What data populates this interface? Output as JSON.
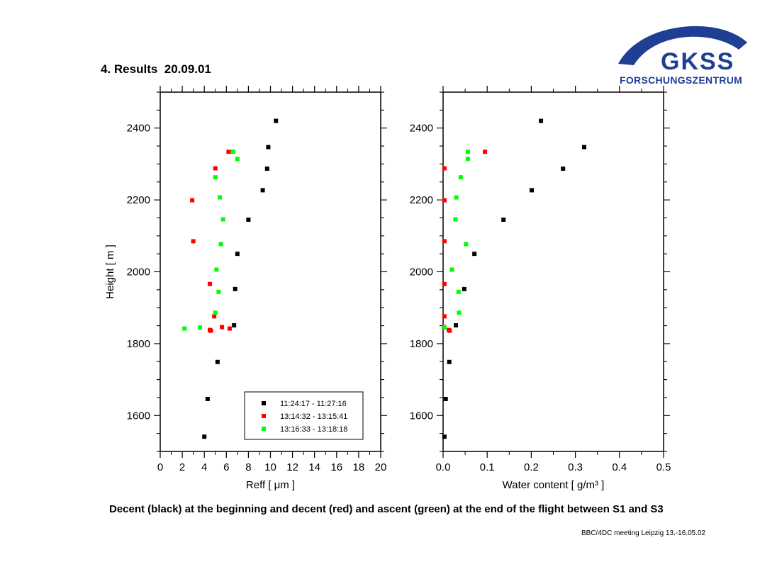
{
  "slide": {
    "title": "4. Results  20.09.01",
    "caption": "Decent (black) at the beginning and decent (red) and ascent (green) at the end of the flight between S1 and S3",
    "footer": "BBC/4DC meeting Leipzig 13.-16.05.02"
  },
  "logo": {
    "name": "GKSS",
    "subtitle": "FORSCHUNGSZENTRUM",
    "color": "#1f3f95"
  },
  "legend": {
    "entries": [
      "11:24:17 - 11:27:16",
      "13:14:32 - 13:15:41",
      "13:16:33 - 13:18:18"
    ]
  },
  "chart_data": [
    {
      "type": "scatter",
      "xlabel": "Reff [ μm ]",
      "ylabel": "Height [ m ]",
      "xlim": [
        0,
        20
      ],
      "ylim": [
        1500,
        2500
      ],
      "xticks": [
        0,
        2,
        4,
        6,
        8,
        10,
        12,
        14,
        16,
        18,
        20
      ],
      "yticks": [
        1600,
        1800,
        2000,
        2200,
        2400
      ],
      "legend_position": "bottom-right",
      "series": [
        {
          "name": "11:24:17 - 11:27:16",
          "color": "#000000",
          "points": [
            [
              10.5,
              2420
            ],
            [
              9.8,
              2347
            ],
            [
              9.7,
              2287
            ],
            [
              9.3,
              2227
            ],
            [
              8.0,
              2145
            ],
            [
              7.0,
              2050
            ],
            [
              6.8,
              1952
            ],
            [
              6.7,
              1851
            ],
            [
              5.2,
              1749
            ],
            [
              4.3,
              1646
            ],
            [
              4.0,
              1541
            ]
          ]
        },
        {
          "name": "13:14:32 - 13:15:41",
          "color": "#ff0000",
          "points": [
            [
              6.2,
              2334
            ],
            [
              5.0,
              2288
            ],
            [
              2.9,
              2199
            ],
            [
              3.0,
              2085
            ],
            [
              4.5,
              1966
            ],
            [
              4.9,
              1876
            ],
            [
              5.6,
              1846
            ],
            [
              6.3,
              1842
            ],
            [
              4.5,
              1838
            ],
            [
              4.6,
              1836
            ]
          ]
        },
        {
          "name": "13:16:33 - 13:18:18",
          "color": "#00ff00",
          "points": [
            [
              6.6,
              2334
            ],
            [
              7.0,
              2314
            ],
            [
              5.0,
              2263
            ],
            [
              5.4,
              2207
            ],
            [
              5.7,
              2146
            ],
            [
              5.5,
              2077
            ],
            [
              5.1,
              2006
            ],
            [
              5.3,
              1944
            ],
            [
              5.0,
              1886
            ],
            [
              3.6,
              1845
            ],
            [
              2.2,
              1842
            ]
          ]
        }
      ]
    },
    {
      "type": "scatter",
      "xlabel": "Water content [ g/m³ ]",
      "ylabel": "",
      "xlim": [
        0,
        0.5
      ],
      "ylim": [
        1500,
        2500
      ],
      "xticks": [
        0.0,
        0.1,
        0.2,
        0.3,
        0.4,
        0.5
      ],
      "xticklabels": [
        "0.0",
        "0.1",
        "0.2",
        "0.3",
        "0.4",
        "0.5"
      ],
      "yticks": [
        1600,
        1800,
        2000,
        2200,
        2400
      ],
      "series": [
        {
          "name": "11:24:17 - 11:27:16",
          "color": "#000000",
          "points": [
            [
              0.222,
              2420
            ],
            [
              0.32,
              2347
            ],
            [
              0.272,
              2287
            ],
            [
              0.201,
              2227
            ],
            [
              0.137,
              2145
            ],
            [
              0.071,
              2050
            ],
            [
              0.048,
              1952
            ],
            [
              0.029,
              1851
            ],
            [
              0.014,
              1749
            ],
            [
              0.006,
              1646
            ],
            [
              0.003,
              1541
            ]
          ]
        },
        {
          "name": "13:14:32 - 13:15:41",
          "color": "#ff0000",
          "points": [
            [
              0.095,
              2334
            ],
            [
              0.003,
              2288
            ],
            [
              0.003,
              2199
            ],
            [
              0.003,
              2085
            ],
            [
              0.003,
              1966
            ],
            [
              0.003,
              1876
            ],
            [
              0.002,
              1846
            ],
            [
              0.013,
              1838
            ],
            [
              0.015,
              1836
            ]
          ]
        },
        {
          "name": "13:16:33 - 13:18:18",
          "color": "#00ff00",
          "points": [
            [
              0.056,
              2334
            ],
            [
              0.056,
              2314
            ],
            [
              0.04,
              2263
            ],
            [
              0.03,
              2207
            ],
            [
              0.028,
              2146
            ],
            [
              0.052,
              2077
            ],
            [
              0.02,
              2006
            ],
            [
              0.035,
              1944
            ],
            [
              0.036,
              1886
            ],
            [
              0.003,
              1845
            ]
          ]
        }
      ]
    }
  ]
}
